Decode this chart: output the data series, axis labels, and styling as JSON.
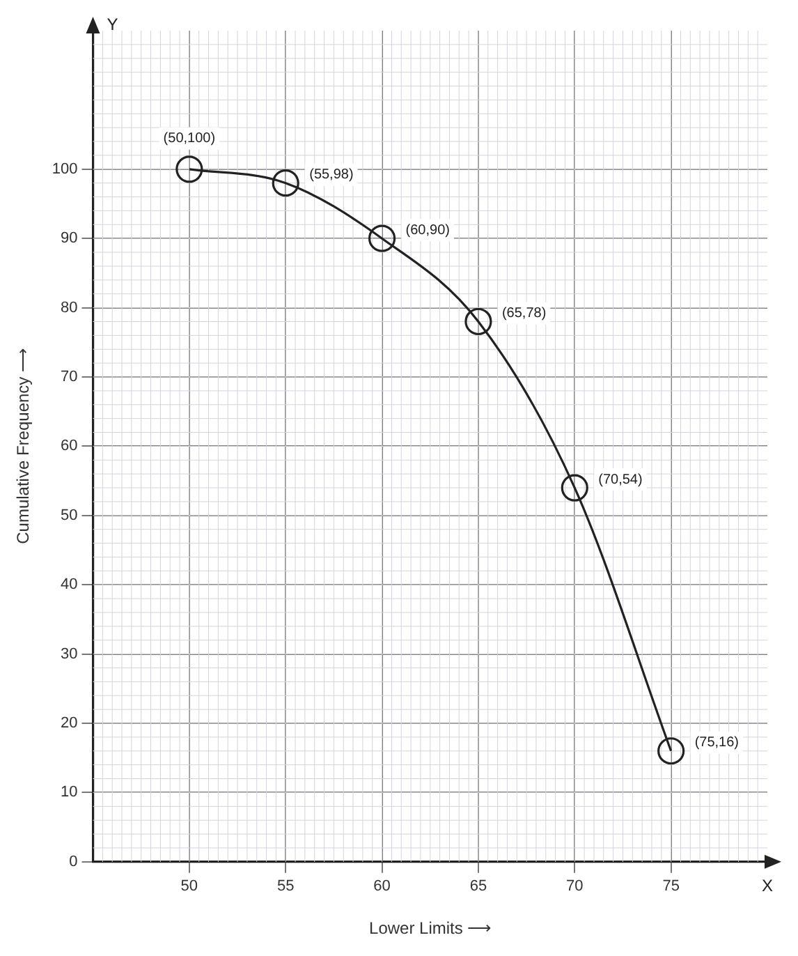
{
  "chart_data": {
    "type": "line",
    "xlabel": "Lower Limits ⟶",
    "ylabel": "Cumulative Frequency ⟶",
    "x": [
      50,
      55,
      60,
      65,
      70,
      75
    ],
    "series": [
      {
        "color": "#222222",
        "values": [
          100,
          98,
          90,
          78,
          54,
          16
        ]
      }
    ],
    "xlim": [
      45,
      80
    ],
    "xticks": [
      50,
      55,
      60,
      65,
      70,
      75
    ],
    "ylim": [
      0,
      120
    ],
    "yticks": [
      0,
      10,
      20,
      30,
      40,
      50,
      60,
      70,
      80,
      90,
      100
    ],
    "annotations": [
      "Y",
      "X",
      {
        "text": "(50,100)",
        "x": 50,
        "y": 100
      },
      {
        "text": "(55,98)",
        "x": 55,
        "y": 98
      },
      {
        "text": "(60,90)",
        "x": 60,
        "y": 90
      },
      {
        "text": "(65,78)",
        "x": 65,
        "y": 78
      },
      {
        "text": "(70,54)",
        "x": 70,
        "y": 54
      },
      {
        "text": "(75,16)",
        "x": 75,
        "y": 16
      }
    ],
    "grid": true,
    "marker": "circle",
    "line_style": "solid",
    "legend": false
  }
}
